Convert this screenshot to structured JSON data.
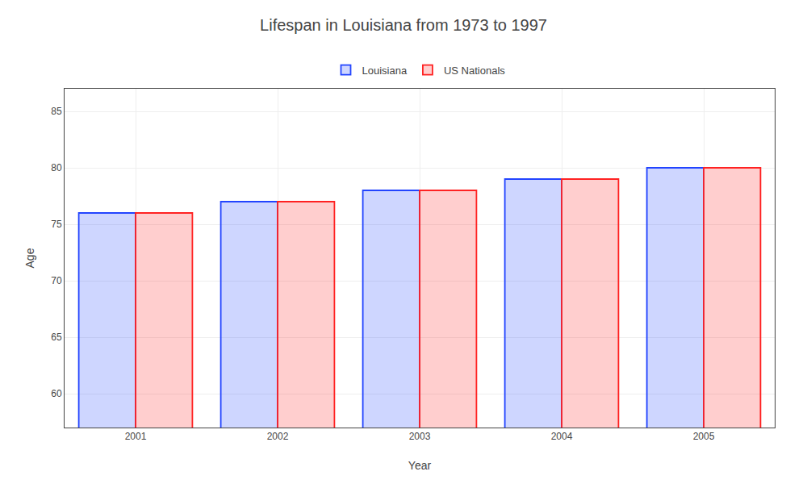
{
  "chart_data": {
    "type": "bar",
    "title": "Lifespan in Louisiana from 1973 to 1997",
    "xlabel": "Year",
    "ylabel": "Age",
    "categories": [
      "2001",
      "2002",
      "2003",
      "2004",
      "2005"
    ],
    "series": [
      {
        "name": "Louisiana",
        "color": "#2244ff",
        "values": [
          76,
          77,
          78,
          79,
          80
        ]
      },
      {
        "name": "US Nationals",
        "color": "#ff2222",
        "values": [
          76,
          77,
          78,
          79,
          80
        ]
      }
    ],
    "ylim": [
      57,
      87
    ],
    "yticks": [
      60,
      65,
      70,
      75,
      80,
      85
    ],
    "grid": true,
    "legend": "top"
  }
}
